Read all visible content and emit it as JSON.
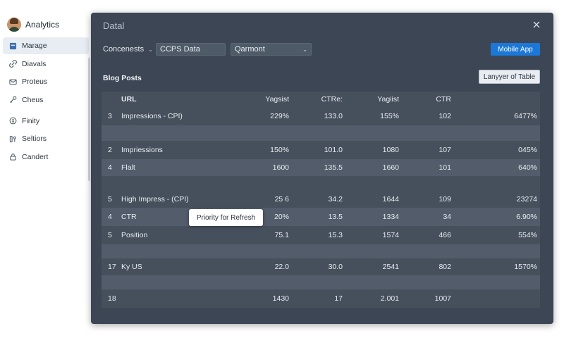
{
  "app": {
    "name": "Analytics"
  },
  "sidebar": {
    "items": [
      {
        "label": "Marage",
        "icon": "home-icon",
        "active": true
      },
      {
        "label": "Diavals",
        "icon": "link-icon"
      },
      {
        "label": "Proteus",
        "icon": "mail-icon"
      },
      {
        "label": "Cheus",
        "icon": "key-icon"
      },
      {
        "label": "Finity",
        "icon": "coin-icon"
      },
      {
        "label": "Seltiors",
        "icon": "columns-icon"
      },
      {
        "label": "Candert",
        "icon": "lock-icon"
      }
    ]
  },
  "panel": {
    "title": "Datal",
    "toolbar": {
      "concenests_label": "Concenests",
      "data_value": "CCPS Data",
      "select_value": "Qarmont",
      "mobile_button": "Mobile App"
    },
    "section_title": "Blog Posts",
    "layer_button": "Lanyyer of Table",
    "tooltip": "Priority for Refresh",
    "colors": {
      "accent": "#1b78d8",
      "panel": "#3c4654",
      "table": "#4d5765"
    }
  },
  "table": {
    "headers": [
      "",
      "URL",
      "Yagsist",
      "CTRe:",
      "Yagiist",
      "CTR",
      ""
    ],
    "rows": [
      [
        "3",
        "Impressions - CPI)",
        "229%",
        "133.0",
        "155%",
        "102",
        "6477%"
      ],
      [
        "",
        "",
        "",
        "",
        "",
        "",
        ""
      ],
      [
        "2",
        "Impriessions",
        "150%",
        "101.0",
        "1080",
        "107",
        "045%"
      ],
      [
        "4",
        "Flalt",
        "1600",
        "135.5",
        "1660",
        "101",
        "640%"
      ],
      [
        "",
        "",
        "",
        "",
        "",
        "",
        ""
      ],
      [
        "5",
        "High Impress - (CPI)",
        "25 6",
        "34.2",
        "1644",
        "109",
        "23274"
      ],
      [
        "4",
        "CTR",
        "20%",
        "13.5",
        "1334",
        "34",
        "6.90%"
      ],
      [
        "5",
        "Position",
        "75.1",
        "15.3",
        "1574",
        "466",
        "554%"
      ],
      [
        "",
        "",
        "",
        "",
        "",
        "",
        ""
      ],
      [
        "17",
        "Ky US",
        "22.0",
        "30.0",
        "2541",
        "802",
        "1570%"
      ],
      [
        "",
        "",
        "",
        "",
        "",
        "",
        ""
      ],
      [
        "18",
        "",
        "1430",
        "17",
        "2.001",
        "1007",
        ""
      ]
    ]
  }
}
